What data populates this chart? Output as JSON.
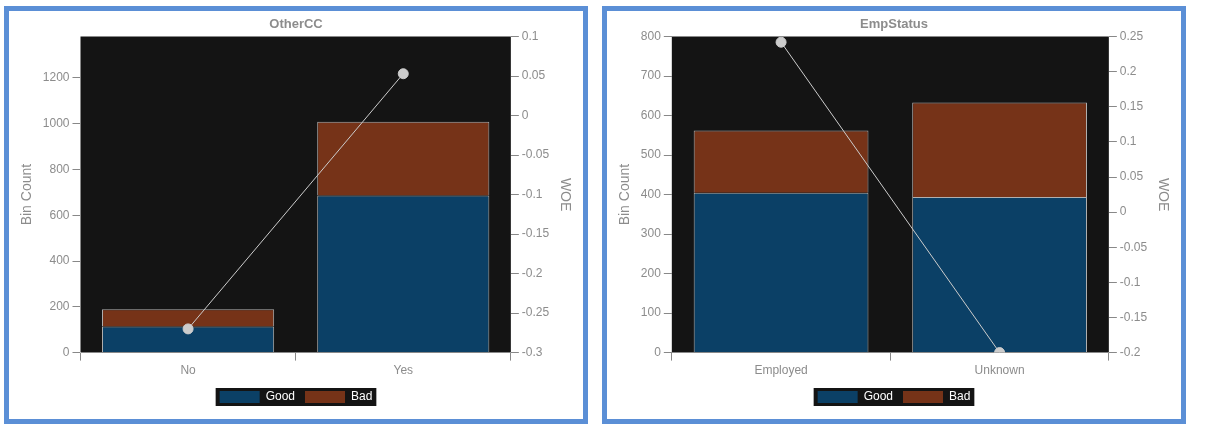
{
  "chart_data": [
    {
      "type": "bar",
      "title": "OtherCC",
      "ylabel": "Bin Count",
      "y2label": "WOE",
      "stacked": true,
      "categories": [
        "No",
        "Yes"
      ],
      "series": [
        {
          "name": "Good",
          "color": "#0b4066",
          "values": [
            114,
            686
          ]
        },
        {
          "name": "Bad",
          "color": "#763318",
          "values": [
            75,
            322
          ]
        },
        {
          "type": "line",
          "axis": "y2",
          "color": "#cccccc",
          "marker": "circle",
          "values": [
            -0.27,
            0.053
          ]
        }
      ],
      "ylim": [
        0,
        1380
      ],
      "yticks": [
        0,
        200,
        400,
        600,
        800,
        1000,
        1200
      ],
      "y2lim": [
        -0.3,
        0.1
      ],
      "y2ticks": [
        -0.3,
        -0.25,
        -0.2,
        -0.15,
        -0.1,
        -0.05,
        0,
        0.05,
        0.1
      ],
      "grid": false,
      "legend": "bottom"
    },
    {
      "type": "bar",
      "title": "EmpStatus",
      "ylabel": "Bin Count",
      "y2label": "WOE",
      "stacked": true,
      "categories": [
        "Employed",
        "Unknown"
      ],
      "series": [
        {
          "name": "Good",
          "color": "#0b4066",
          "values": [
            405,
            394
          ]
        },
        {
          "name": "Bad",
          "color": "#763318",
          "values": [
            157,
            239
          ]
        },
        {
          "type": "line",
          "axis": "y2",
          "color": "#cccccc",
          "marker": "circle",
          "values": [
            0.242,
            -0.2
          ]
        }
      ],
      "ylim": [
        0,
        800
      ],
      "yticks": [
        0,
        100,
        200,
        300,
        400,
        500,
        600,
        700,
        800
      ],
      "y2lim": [
        -0.2,
        0.25
      ],
      "y2ticks": [
        -0.2,
        -0.15,
        -0.1,
        -0.05,
        0,
        0.05,
        0.1,
        0.15,
        0.2,
        0.25
      ],
      "grid": false,
      "legend": "bottom"
    }
  ]
}
